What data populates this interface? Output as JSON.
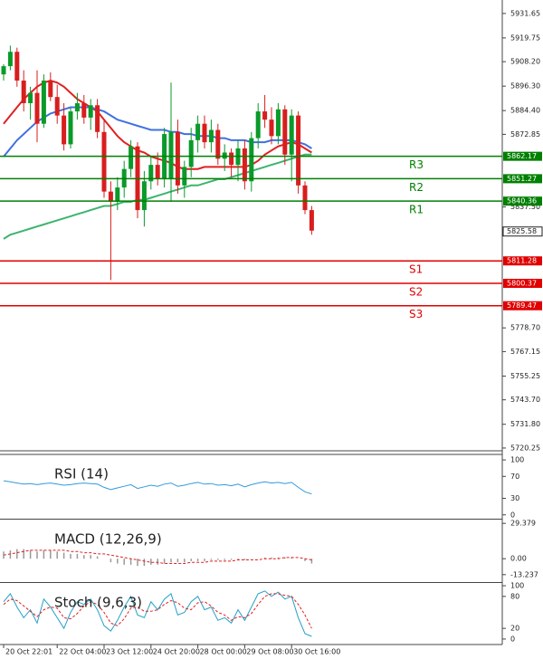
{
  "chart_data": [
    {
      "type": "candlestick",
      "categories": [
        "20 Oct 22:01",
        null,
        null,
        null,
        null,
        null,
        null,
        null,
        "22 Oct 04:00",
        null,
        null,
        null,
        null,
        null,
        null,
        "23 Oct 12:00",
        null,
        null,
        null,
        null,
        null,
        null,
        "24 Oct 20:00",
        null,
        null,
        null,
        null,
        null,
        null,
        "28 Oct 00:00",
        null,
        null,
        null,
        null,
        null,
        null,
        "29 Oct 08:00",
        null,
        null,
        null,
        null,
        null,
        null,
        "30 Oct 16:00",
        null,
        null,
        null
      ],
      "open": [
        5902,
        5906,
        5913,
        5899,
        5888,
        5893,
        5878,
        5899,
        5891,
        5882,
        5868,
        5884,
        5888,
        5881,
        5887,
        5874,
        5845,
        5840,
        5847,
        5856,
        5867,
        5836,
        5850,
        5858,
        5851,
        5851,
        5874,
        5848,
        5857,
        5870,
        5878,
        5869,
        5875,
        5861,
        5864,
        5858,
        5866,
        5850,
        5871,
        5884,
        5880,
        5872,
        5885,
        5863,
        5882,
        5848,
        5836
      ],
      "high": [
        5907,
        5916,
        5915,
        5904,
        5896,
        5904,
        5902,
        5903,
        5897,
        5888,
        5886,
        5893,
        5892,
        5890,
        5890,
        5880,
        5850,
        5852,
        5860,
        5870,
        5869,
        5855,
        5862,
        5864,
        5876,
        5898,
        5880,
        5860,
        5876,
        5882,
        5882,
        5880,
        5878,
        5868,
        5866,
        5870,
        5870,
        5874,
        5888,
        5892,
        5886,
        5888,
        5887,
        5885,
        5884,
        5850,
        5838
      ],
      "low": [
        5899,
        5904,
        5896,
        5884,
        5880,
        5869,
        5876,
        5889,
        5878,
        5865,
        5866,
        5880,
        5878,
        5875,
        5871,
        5842,
        5802,
        5836,
        5842,
        5852,
        5832,
        5828,
        5846,
        5848,
        5847,
        5840,
        5844,
        5842,
        5852,
        5864,
        5866,
        5864,
        5858,
        5855,
        5852,
        5850,
        5846,
        5845,
        5866,
        5876,
        5868,
        5868,
        5858,
        5850,
        5844,
        5834,
        5824
      ],
      "close": [
        5906,
        5913,
        5899,
        5888,
        5893,
        5878,
        5899,
        5891,
        5882,
        5868,
        5884,
        5888,
        5881,
        5887,
        5874,
        5845,
        5840,
        5847,
        5856,
        5867,
        5836,
        5850,
        5858,
        5851,
        5873,
        5874,
        5848,
        5857,
        5870,
        5878,
        5869,
        5875,
        5861,
        5864,
        5858,
        5866,
        5850,
        5871,
        5884,
        5880,
        5872,
        5885,
        5863,
        5882,
        5848,
        5836,
        5826
      ],
      "up_color": "#0a9a2a",
      "down_color": "#d81e1e",
      "overlays": [
        {
          "color": "#e02020",
          "values": [
            5878,
            5882,
            5886,
            5890,
            5893,
            5896,
            5898,
            5899,
            5898,
            5896,
            5893,
            5890,
            5888,
            5886,
            5884,
            5880,
            5876,
            5872,
            5869,
            5867,
            5865,
            5864,
            5862,
            5861,
            5860,
            5859,
            5857,
            5856,
            5856,
            5856,
            5857,
            5857,
            5857,
            5857,
            5857,
            5857,
            5857,
            5858,
            5860,
            5863,
            5865,
            5867,
            5868,
            5869,
            5868,
            5866,
            5864
          ]
        },
        {
          "color": "#4070e0",
          "values": [
            5862,
            5866,
            5870,
            5873,
            5876,
            5879,
            5881,
            5883,
            5884,
            5885,
            5886,
            5886,
            5886,
            5886,
            5885,
            5884,
            5882,
            5880,
            5879,
            5878,
            5877,
            5876,
            5875,
            5875,
            5875,
            5874,
            5874,
            5873,
            5873,
            5872,
            5872,
            5872,
            5871,
            5871,
            5870,
            5870,
            5870,
            5869,
            5869,
            5869,
            5870,
            5870,
            5870,
            5870,
            5869,
            5868,
            5866
          ]
        },
        {
          "color": "#3cb46e",
          "values": [
            5822,
            5824,
            5825,
            5826,
            5827,
            5828,
            5829,
            5830,
            5831,
            5832,
            5833,
            5834,
            5835,
            5836,
            5837,
            5838,
            5838,
            5839,
            5840,
            5840,
            5841,
            5841,
            5842,
            5843,
            5844,
            5845,
            5846,
            5847,
            5848,
            5848,
            5849,
            5850,
            5851,
            5851,
            5852,
            5853,
            5854,
            5855,
            5856,
            5857,
            5858,
            5859,
            5860,
            5861,
            5862,
            5863,
            5863
          ]
        }
      ],
      "levels": [
        {
          "label": "R3",
          "value": 5862.17,
          "color": "#008000"
        },
        {
          "label": "R2",
          "value": 5851.27,
          "color": "#008000"
        },
        {
          "label": "R1",
          "value": 5840.36,
          "color": "#008000"
        },
        {
          "label": "S1",
          "value": 5811.28,
          "color": "#e00000"
        },
        {
          "label": "S2",
          "value": 5800.37,
          "color": "#e00000"
        },
        {
          "label": "S3",
          "value": 5789.47,
          "color": "#e00000"
        }
      ],
      "last_price": 5825.58,
      "ylim": [
        5718.9,
        5938.2
      ],
      "yticks": [
        5931.65,
        5919.75,
        {
          "value": 5908.2,
          "label": "5908.20"
        },
        {
          "value": 5896.3,
          "label": "5896.30"
        },
        {
          "value": 5884.4,
          "label": "5884.40"
        },
        5872.85,
        {
          "value": 5837.5,
          "label": "5837.50"
        },
        {
          "value": 5778.7,
          "label": "5778.70"
        },
        5767.15,
        5755.25,
        {
          "value": 5743.7,
          "label": "5743.70"
        },
        {
          "value": 5731.8,
          "label": "5731.80"
        },
        5720.25
      ]
    },
    {
      "type": "line",
      "title": "RSI (14)",
      "ylim": [
        -7,
        110
      ],
      "yticks": [
        100,
        70,
        30,
        0
      ],
      "series": [
        {
          "color": "#3399dd",
          "dash": false,
          "values": [
            62,
            60,
            58,
            56,
            57,
            55,
            57,
            58,
            56,
            54,
            55,
            57,
            58,
            57,
            56,
            50,
            46,
            49,
            52,
            55,
            48,
            51,
            54,
            52,
            56,
            58,
            52,
            54,
            57,
            59,
            56,
            57,
            54,
            55,
            53,
            56,
            51,
            55,
            58,
            60,
            58,
            59,
            57,
            59,
            50,
            42,
            38
          ]
        }
      ]
    },
    {
      "type": "macd",
      "title": "MACD (12,26,9)",
      "ylim": [
        -19.4,
        32.5
      ],
      "yticks": [
        29.379,
        {
          "value": 0,
          "label": "0.00"
        },
        -13.237
      ],
      "histogram": {
        "color": "#999999",
        "values": [
          6,
          7,
          8,
          8,
          7,
          6,
          7,
          7,
          6,
          5,
          4,
          4,
          3,
          3,
          2,
          0,
          -3,
          -4,
          -5,
          -5,
          -6,
          -6,
          -5,
          -5,
          -4,
          -3,
          -3,
          -3,
          -2,
          -2,
          -2,
          -1,
          -1,
          -1,
          -1,
          -1,
          -1,
          0,
          0,
          1,
          1,
          1,
          1,
          1,
          0,
          -2,
          -4
        ]
      },
      "series": [
        {
          "color": "#e02020",
          "dash": true,
          "values": [
            3,
            4,
            5,
            6,
            7,
            7,
            7,
            7,
            7,
            7,
            6,
            6,
            5,
            5,
            4,
            4,
            3,
            2,
            1,
            0,
            -1,
            -2,
            -3,
            -3,
            -4,
            -4,
            -4,
            -4,
            -3,
            -3,
            -3,
            -2,
            -2,
            -2,
            -2,
            -1,
            -1,
            -1,
            -1,
            0,
            0,
            0,
            1,
            1,
            1,
            0,
            -1
          ]
        }
      ]
    },
    {
      "type": "line",
      "title": "Stoch (9,6,3)",
      "ylim": [
        -10.3,
        105.2
      ],
      "yticks": [
        100,
        80,
        20,
        0
      ],
      "series": [
        {
          "color": "#22a0c8",
          "dash": false,
          "values": [
            70,
            85,
            60,
            40,
            55,
            30,
            75,
            60,
            40,
            20,
            50,
            70,
            65,
            75,
            55,
            25,
            15,
            35,
            60,
            80,
            45,
            40,
            70,
            55,
            75,
            85,
            45,
            50,
            70,
            80,
            55,
            60,
            35,
            40,
            30,
            55,
            35,
            60,
            85,
            90,
            80,
            88,
            75,
            80,
            40,
            10,
            5
          ]
        },
        {
          "color": "#e02020",
          "dash": true,
          "values": [
            65,
            75,
            72,
            62,
            52,
            42,
            55,
            60,
            58,
            40,
            38,
            48,
            62,
            70,
            65,
            50,
            30,
            25,
            38,
            58,
            60,
            52,
            52,
            55,
            65,
            72,
            68,
            58,
            55,
            68,
            70,
            62,
            50,
            45,
            35,
            42,
            40,
            48,
            65,
            80,
            85,
            85,
            82,
            80,
            65,
            45,
            20
          ]
        }
      ]
    }
  ]
}
